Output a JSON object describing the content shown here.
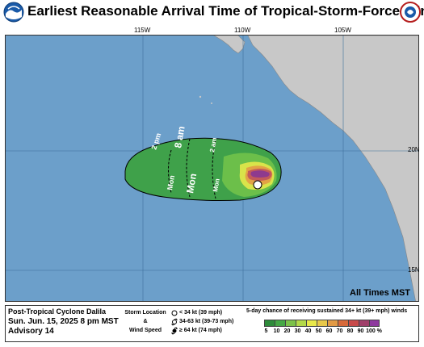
{
  "header": {
    "title": "Earliest Reasonable Arrival Time of Tropical-Storm-Force Winds",
    "left_logo": "noaa-logo",
    "right_logo": "national-weather-service-logo"
  },
  "map": {
    "longitude_labels": [
      "115W",
      "110W",
      "105W"
    ],
    "latitude_labels": [
      "20N",
      "15N"
    ],
    "time_labels": [
      "2 pm",
      "Mon",
      "8 am",
      "Mon",
      "2 am",
      "Mon"
    ],
    "all_times_note": "All Times MST",
    "colors": {
      "ocean": "#6c9fca",
      "land": "#c8c8c8",
      "cone_light": "#3fa14a",
      "cone_mid": "#6cbf4a",
      "cone_yellow": "#d9e44a",
      "cone_orange": "#e2a345",
      "cone_red": "#c35a5a",
      "cone_purple": "#8e3a8e"
    }
  },
  "footer": {
    "storm_name": "Post-Tropical Cyclone Dalila",
    "date_line": "Sun. Jun. 15, 2025  8 pm MST",
    "advisory": "Advisory 14",
    "legend_left": [
      "Storm Location",
      "&",
      "Wind Speed"
    ],
    "legend_items": [
      {
        "icon": "circle-icon",
        "label": "< 34 kt (39 mph)"
      },
      {
        "icon": "tropical-storm-icon",
        "label": "34-63 kt (39-73 mph)"
      },
      {
        "icon": "hurricane-icon",
        "label": "≥ 64 kt (74 mph)"
      }
    ],
    "chance_title": "5-day chance of receiving sustained 34+ kt (39+ mph) winds",
    "scale_labels": [
      "5",
      "10",
      "20",
      "30",
      "40",
      "50",
      "60",
      "70",
      "80",
      "90",
      "100 %"
    ],
    "scale_colors": [
      "#2e8b3a",
      "#45a845",
      "#7cc24a",
      "#b3d94a",
      "#e8e84a",
      "#e8c84a",
      "#e29a45",
      "#d86a3a",
      "#c84a4a",
      "#a0406a",
      "#8e3a9e"
    ]
  }
}
